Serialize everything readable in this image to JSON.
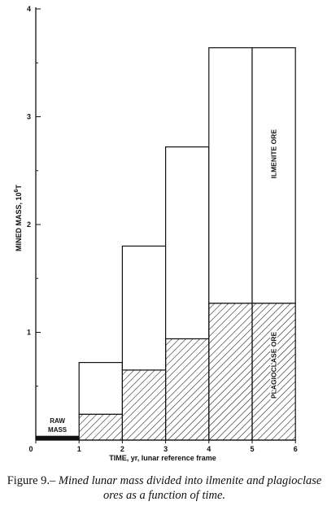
{
  "chart_data": {
    "type": "bar",
    "stacked": true,
    "x_tick_labels": [
      "0",
      "1",
      "2",
      "3",
      "4",
      "5",
      "6"
    ],
    "y_tick_labels": [
      "1",
      "2",
      "3",
      "4"
    ],
    "xlim": [
      0,
      6
    ],
    "ylim": [
      0,
      4
    ],
    "xlabel": "TIME, yr, lunar reference frame",
    "ylabel": "MINED MASS, 10^6 T",
    "grid": false,
    "bins": [
      {
        "x0": 1,
        "x1": 2,
        "plagioclase": 0.24,
        "ilmenite": 0.48,
        "total": 0.72
      },
      {
        "x0": 2,
        "x1": 3,
        "plagioclase": 0.65,
        "ilmenite": 1.15,
        "total": 1.8
      },
      {
        "x0": 3,
        "x1": 4,
        "plagioclase": 0.94,
        "ilmenite": 1.78,
        "total": 2.72
      },
      {
        "x0": 4,
        "x1": 5,
        "plagioclase": 1.27,
        "ilmenite": 2.37,
        "total": 3.64
      },
      {
        "x0": 5,
        "x1": 6,
        "plagioclase": 1.27,
        "ilmenite": 2.37,
        "total": 3.64
      }
    ],
    "raw_mass": {
      "x0": 0,
      "x1": 1,
      "value": 0.04
    },
    "annotations": {
      "raw_mass_line1": "RAW",
      "raw_mass_line2": "MASS",
      "ilmenite": "ILMENITE ORE",
      "plagioclase": "PLAGIOCLASE ORE"
    }
  },
  "axis": {
    "ylabel_main": "MINED MASS, 10",
    "ylabel_sup": "6",
    "ylabel_unit": "T",
    "xlabel": "TIME, yr, lunar reference frame"
  },
  "caption": {
    "label": "Figure 9.–",
    "text": "Mined lunar mass divided into ilmenite and plagioclase ores as a function of time."
  }
}
